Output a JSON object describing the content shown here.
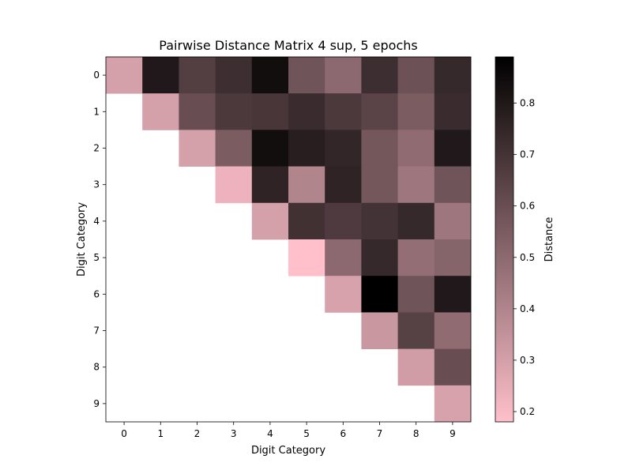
{
  "chart_data": {
    "type": "heatmap",
    "title": "Pairwise Distance Matrix 4 sup, 5 epochs",
    "xlabel": "Digit Category",
    "ylabel": "Digit Category",
    "categories": [
      "0",
      "1",
      "2",
      "3",
      "4",
      "5",
      "6",
      "7",
      "8",
      "9"
    ],
    "triangle": "upper",
    "values": [
      [
        0.3,
        0.8,
        0.66,
        0.72,
        0.84,
        0.58,
        0.5,
        0.72,
        0.59,
        0.74
      ],
      [
        null,
        0.3,
        0.6,
        0.68,
        0.69,
        0.73,
        0.68,
        0.64,
        0.55,
        0.73
      ],
      [
        null,
        null,
        0.3,
        0.55,
        0.84,
        0.78,
        0.75,
        0.57,
        0.49,
        0.8
      ],
      [
        null,
        null,
        null,
        0.23,
        0.76,
        0.4,
        0.76,
        0.57,
        0.45,
        0.58
      ],
      [
        null,
        null,
        null,
        null,
        0.3,
        0.71,
        0.67,
        0.7,
        0.74,
        0.45
      ],
      [
        null,
        null,
        null,
        null,
        null,
        0.18,
        0.5,
        0.74,
        0.48,
        0.52
      ],
      [
        null,
        null,
        null,
        null,
        null,
        null,
        0.29,
        0.89,
        0.58,
        0.8
      ],
      [
        null,
        null,
        null,
        null,
        null,
        null,
        null,
        0.33,
        0.65,
        0.49
      ],
      [
        null,
        null,
        null,
        null,
        null,
        null,
        null,
        null,
        0.31,
        0.6
      ],
      [
        null,
        null,
        null,
        null,
        null,
        null,
        null,
        null,
        null,
        0.29
      ]
    ],
    "colorbar": {
      "label": "Distance",
      "range": [
        0.18,
        0.89
      ],
      "ticks": [
        0.2,
        0.3,
        0.4,
        0.5,
        0.6,
        0.7,
        0.8
      ],
      "colormap": [
        "#ffc0cb",
        "#000000"
      ]
    },
    "grid": false
  }
}
